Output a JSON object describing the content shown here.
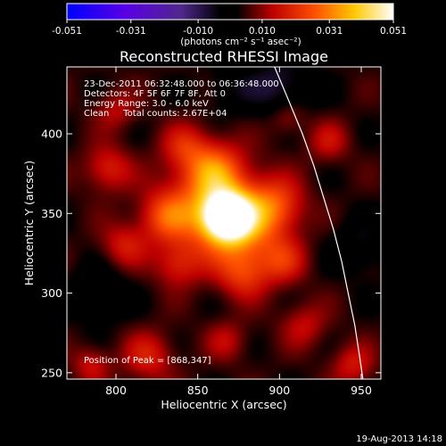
{
  "colorbar": {
    "ticks": [
      "-0.051",
      "-0.031",
      "-0.010",
      "0.010",
      "0.031",
      "0.051"
    ],
    "tick_values": [
      -0.051,
      -0.031,
      -0.01,
      0.01,
      0.031,
      0.051
    ],
    "units_label": "(photons cm⁻² s⁻¹ asec⁻²)",
    "range": [
      -0.051,
      0.051
    ]
  },
  "chart_data": {
    "type": "heatmap",
    "title": "Reconstructed RHESSI Image",
    "xlabel": "Heliocentric X (arcsec)",
    "ylabel": "Heliocentric Y (arcsec)",
    "xlim": [
      770,
      962
    ],
    "ylim": [
      246,
      442
    ],
    "x_ticks": [
      800,
      850,
      900,
      950
    ],
    "y_ticks": [
      250,
      300,
      350,
      400
    ],
    "info_lines": [
      "23-Dec-2011 06:32:48.000 to 06:36:48.000",
      "Detectors: 4F 5F 6F 7F 8F, Att 0",
      "Energy Range: 3.0 - 6.0 keV",
      "Clean     Total counts: 2.67E+04"
    ],
    "peak_label": "Position of Peak = [868,347]",
    "peak": [
      868,
      347
    ],
    "background_level": 0.004,
    "sources": [
      {
        "x": 868,
        "y": 348,
        "amp": 0.047,
        "sigma": 10
      },
      {
        "x": 858,
        "y": 355,
        "amp": 0.022,
        "sigma": 20
      },
      {
        "x": 878,
        "y": 340,
        "amp": 0.018,
        "sigma": 17
      },
      {
        "x": 860,
        "y": 378,
        "amp": 0.018,
        "sigma": 12
      },
      {
        "x": 898,
        "y": 355,
        "amp": 0.017,
        "sigma": 12
      },
      {
        "x": 830,
        "y": 348,
        "amp": 0.016,
        "sigma": 11
      },
      {
        "x": 878,
        "y": 312,
        "amp": 0.015,
        "sigma": 11
      },
      {
        "x": 902,
        "y": 320,
        "amp": 0.013,
        "sigma": 10
      },
      {
        "x": 838,
        "y": 318,
        "amp": 0.013,
        "sigma": 10
      },
      {
        "x": 842,
        "y": 392,
        "amp": 0.012,
        "sigma": 10
      },
      {
        "x": 795,
        "y": 378,
        "amp": 0.014,
        "sigma": 10
      },
      {
        "x": 805,
        "y": 330,
        "amp": 0.012,
        "sigma": 10
      },
      {
        "x": 820,
        "y": 260,
        "amp": 0.013,
        "sigma": 11
      },
      {
        "x": 785,
        "y": 255,
        "amp": 0.011,
        "sigma": 8
      },
      {
        "x": 945,
        "y": 255,
        "amp": 0.012,
        "sigma": 9
      },
      {
        "x": 930,
        "y": 395,
        "amp": 0.01,
        "sigma": 9
      },
      {
        "x": 905,
        "y": 410,
        "amp": 0.009,
        "sigma": 8
      },
      {
        "x": 915,
        "y": 280,
        "amp": 0.01,
        "sigma": 10
      },
      {
        "x": 800,
        "y": 415,
        "amp": 0.009,
        "sigma": 9
      },
      {
        "x": 868,
        "y": 270,
        "amp": 0.009,
        "sigma": 9
      },
      {
        "x": 900,
        "y": 430,
        "amp": -0.012,
        "sigma": 14
      },
      {
        "x": 790,
        "y": 300,
        "amp": -0.009,
        "sigma": 12
      },
      {
        "x": 950,
        "y": 330,
        "amp": -0.008,
        "sigma": 12
      },
      {
        "x": 870,
        "y": 428,
        "amp": -0.006,
        "sigma": 10
      }
    ],
    "limb_curve": [
      [
        897,
        442
      ],
      [
        906,
        420
      ],
      [
        914,
        400
      ],
      [
        921,
        380
      ],
      [
        927,
        360
      ],
      [
        933,
        340
      ],
      [
        938,
        320
      ],
      [
        942,
        300
      ],
      [
        946,
        280
      ],
      [
        949,
        260
      ],
      [
        951,
        246
      ]
    ]
  },
  "footer": {
    "date": "19-Aug-2013 14:18"
  }
}
